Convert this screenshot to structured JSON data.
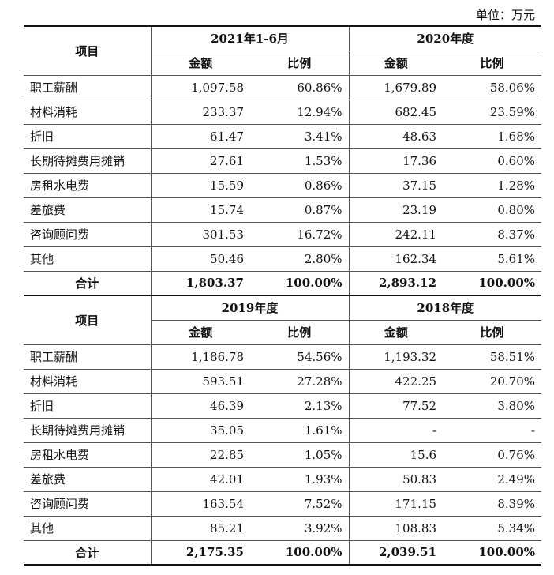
{
  "unit_label": "单位：万元",
  "sections": [
    {
      "item_header": "项目",
      "periods": [
        "2021年1-6月",
        "2020年度"
      ],
      "sub_headers": [
        "金额",
        "比例",
        "金额",
        "比例"
      ],
      "rows": [
        {
          "label": "职工薪酬",
          "v": [
            "1,097.58",
            "60.86%",
            "1,679.89",
            "58.06%"
          ]
        },
        {
          "label": "材料消耗",
          "v": [
            "233.37",
            "12.94%",
            "682.45",
            "23.59%"
          ]
        },
        {
          "label": "折旧",
          "v": [
            "61.47",
            "3.41%",
            "48.63",
            "1.68%"
          ]
        },
        {
          "label": "长期待摊费用摊销",
          "v": [
            "27.61",
            "1.53%",
            "17.36",
            "0.60%"
          ]
        },
        {
          "label": "房租水电费",
          "v": [
            "15.59",
            "0.86%",
            "37.15",
            "1.28%"
          ]
        },
        {
          "label": "差旅费",
          "v": [
            "15.74",
            "0.87%",
            "23.19",
            "0.80%"
          ]
        },
        {
          "label": "咨询顾问费",
          "v": [
            "301.53",
            "16.72%",
            "242.11",
            "8.37%"
          ]
        },
        {
          "label": "其他",
          "v": [
            "50.46",
            "2.80%",
            "162.34",
            "5.61%"
          ]
        }
      ],
      "total": {
        "label": "合计",
        "v": [
          "1,803.37",
          "100.00%",
          "2,893.12",
          "100.00%"
        ]
      }
    },
    {
      "item_header": "项目",
      "periods": [
        "2019年度",
        "2018年度"
      ],
      "sub_headers": [
        "金额",
        "比例",
        "金额",
        "比例"
      ],
      "rows": [
        {
          "label": "职工薪酬",
          "v": [
            "1,186.78",
            "54.56%",
            "1,193.32",
            "58.51%"
          ]
        },
        {
          "label": "材料消耗",
          "v": [
            "593.51",
            "27.28%",
            "422.25",
            "20.70%"
          ]
        },
        {
          "label": "折旧",
          "v": [
            "46.39",
            "2.13%",
            "77.52",
            "3.80%"
          ]
        },
        {
          "label": "长期待摊费用摊销",
          "v": [
            "35.05",
            "1.61%",
            "-",
            "-"
          ]
        },
        {
          "label": "房租水电费",
          "v": [
            "22.85",
            "1.05%",
            "15.6",
            "0.76%"
          ]
        },
        {
          "label": "差旅费",
          "v": [
            "42.01",
            "1.93%",
            "50.83",
            "2.49%"
          ]
        },
        {
          "label": "咨询顾问费",
          "v": [
            "163.54",
            "7.52%",
            "171.15",
            "8.39%"
          ]
        },
        {
          "label": "其他",
          "v": [
            "85.21",
            "3.92%",
            "108.83",
            "5.34%"
          ]
        }
      ],
      "total": {
        "label": "合计",
        "v": [
          "2,175.35",
          "100.00%",
          "2,039.51",
          "100.00%"
        ]
      }
    }
  ]
}
